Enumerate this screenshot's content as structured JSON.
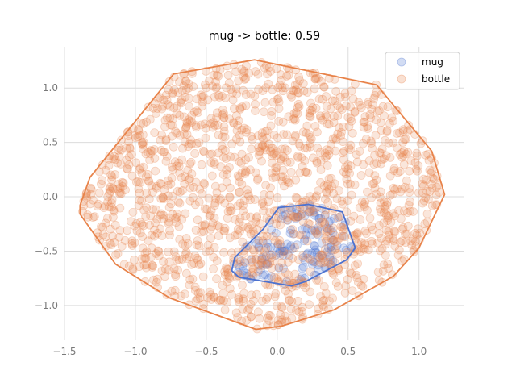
{
  "chart_data": {
    "type": "scatter",
    "title": "mug -> bottle; 0.59",
    "xlabel": "",
    "ylabel": "",
    "xlim": [
      -1.5,
      1.32
    ],
    "ylim": [
      -1.32,
      1.38
    ],
    "xticks": [
      -1.5,
      -1.0,
      -0.5,
      0.0,
      0.5,
      1.0
    ],
    "xtick_labels": [
      "−1.5",
      "−1.0",
      "−0.5",
      "0.0",
      "0.5",
      "1.0"
    ],
    "yticks": [
      -1.0,
      -0.5,
      0.0,
      0.5,
      1.0
    ],
    "ytick_labels": [
      "−1.0",
      "−0.5",
      "0.0",
      "0.5",
      "1.0"
    ],
    "grid": true,
    "legend_position": "top-right",
    "series": [
      {
        "name": "mug",
        "color": "#4c72d0",
        "point_alpha": 0.2,
        "hull": [
          [
            -0.32,
            -0.68
          ],
          [
            -0.3,
            -0.56
          ],
          [
            -0.1,
            -0.3
          ],
          [
            0.01,
            -0.1
          ],
          [
            0.22,
            -0.07
          ],
          [
            0.46,
            -0.14
          ],
          [
            0.55,
            -0.47
          ],
          [
            0.49,
            -0.58
          ],
          [
            0.2,
            -0.78
          ],
          [
            0.1,
            -0.82
          ],
          [
            -0.27,
            -0.74
          ]
        ]
      },
      {
        "name": "bottle",
        "color": "#e8834a",
        "point_alpha": 0.2,
        "hull": [
          [
            -1.39,
            -0.08
          ],
          [
            -1.39,
            -0.16
          ],
          [
            -1.14,
            -0.62
          ],
          [
            -0.76,
            -0.93
          ],
          [
            -0.15,
            -1.22
          ],
          [
            0.03,
            -1.19
          ],
          [
            0.4,
            -1.04
          ],
          [
            0.82,
            -0.73
          ],
          [
            1.0,
            -0.47
          ],
          [
            1.18,
            0.02
          ],
          [
            1.09,
            0.42
          ],
          [
            0.7,
            1.03
          ],
          [
            -0.16,
            1.26
          ],
          [
            -0.73,
            1.13
          ],
          [
            -1.32,
            0.18
          ]
        ]
      }
    ]
  }
}
